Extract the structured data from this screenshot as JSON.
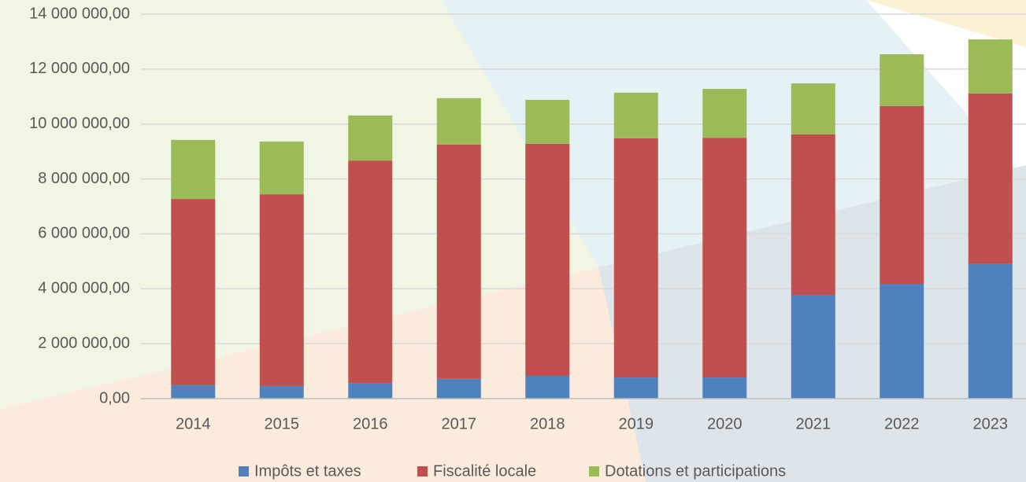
{
  "chart_data": {
    "type": "stacked_bar",
    "categories": [
      "2014",
      "2015",
      "2016",
      "2017",
      "2018",
      "2019",
      "2020",
      "2021",
      "2022",
      "2023"
    ],
    "series": [
      {
        "name": "Impôts et taxes",
        "color": "#4f81bd",
        "values": [
          490000,
          460000,
          570000,
          720000,
          830000,
          770000,
          770000,
          3780000,
          4180000,
          4900000
        ]
      },
      {
        "name": "Fiscalité locale",
        "color": "#c0504d",
        "values": [
          6780000,
          6980000,
          8100000,
          8530000,
          8450000,
          8710000,
          8730000,
          5840000,
          6470000,
          6210000
        ]
      },
      {
        "name": "Dotations et participations",
        "color": "#9bbb59",
        "values": [
          2150000,
          1920000,
          1640000,
          1690000,
          1600000,
          1660000,
          1780000,
          1860000,
          1890000,
          1970000
        ]
      }
    ],
    "ylim": [
      0,
      14000000
    ],
    "yticks": [
      {
        "value": 0,
        "label": "0,00"
      },
      {
        "value": 2000000,
        "label": "2 000 000,00"
      },
      {
        "value": 4000000,
        "label": "4 000 000,00"
      },
      {
        "value": 6000000,
        "label": "6 000 000,00"
      },
      {
        "value": 8000000,
        "label": "8 000 000,00"
      },
      {
        "value": 10000000,
        "label": "10 000 000,00"
      },
      {
        "value": 12000000,
        "label": "12 000 000,00"
      },
      {
        "value": 14000000,
        "label": "14 000 000,00"
      }
    ],
    "grid": true,
    "legend": "bottom"
  }
}
